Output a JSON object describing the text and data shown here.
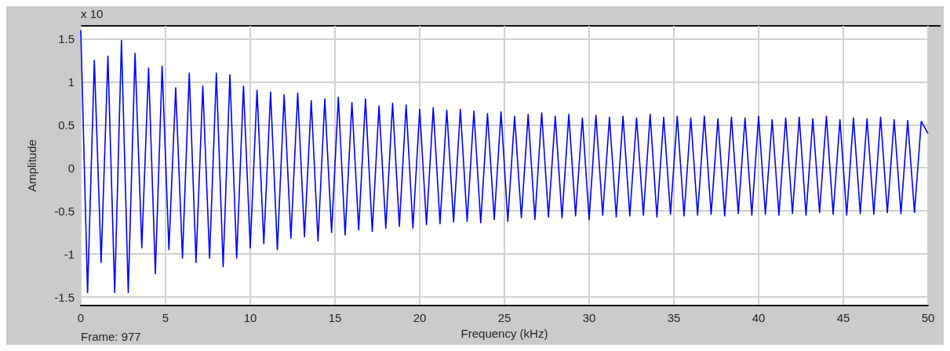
{
  "chart_data": {
    "type": "line",
    "xlabel": "Frequency (kHz)",
    "ylabel": "Amplitude",
    "annotations": [
      "x 10",
      "Frame: 977"
    ],
    "x": [
      0,
      0.4,
      0.8,
      1.2,
      1.6,
      2,
      2.4,
      2.8,
      3.2,
      3.6,
      4,
      4.4,
      4.8,
      5.2,
      5.6,
      6,
      6.4,
      6.8,
      7.2,
      7.6,
      8,
      8.4,
      8.8,
      9.2,
      9.6,
      10,
      10.4,
      10.8,
      11.2,
      11.6,
      12,
      12.4,
      12.8,
      13.2,
      13.6,
      14,
      14.4,
      14.8,
      15.2,
      15.6,
      16,
      16.4,
      16.8,
      17.2,
      17.6,
      18,
      18.4,
      18.8,
      19.2,
      19.6,
      20,
      20.4,
      20.8,
      21.2,
      21.6,
      22,
      22.4,
      22.8,
      23.2,
      23.6,
      24,
      24.4,
      24.8,
      25.2,
      25.6,
      26,
      26.4,
      26.8,
      27.2,
      27.6,
      28,
      28.4,
      28.8,
      29.2,
      29.6,
      30,
      30.4,
      30.8,
      31.2,
      31.6,
      32,
      32.4,
      32.8,
      33.2,
      33.6,
      34,
      34.4,
      34.8,
      35.2,
      35.6,
      36,
      36.4,
      36.8,
      37.2,
      37.6,
      38,
      38.4,
      38.8,
      39.2,
      39.6,
      40,
      40.4,
      40.8,
      41.2,
      41.6,
      42,
      42.4,
      42.8,
      43.2,
      43.6,
      44,
      44.4,
      44.8,
      45.2,
      45.6,
      46,
      46.4,
      46.8,
      47.2,
      47.6,
      48,
      48.4,
      48.8,
      49.2,
      49.6,
      50
    ],
    "series": [
      {
        "color": "#0000ff",
        "values": [
          1.6,
          -1.45,
          1.25,
          -1.1,
          1.3,
          -1.45,
          1.48,
          -1.45,
          1.33,
          -0.93,
          1.16,
          -1.23,
          1.18,
          -0.95,
          0.93,
          -1.05,
          1.1,
          -1.1,
          0.95,
          -1.05,
          1.1,
          -1.15,
          1.08,
          -1.05,
          0.95,
          -0.93,
          0.9,
          -0.88,
          0.88,
          -0.95,
          0.85,
          -0.82,
          0.87,
          -0.8,
          0.78,
          -0.85,
          0.8,
          -0.75,
          0.82,
          -0.78,
          0.76,
          -0.72,
          0.8,
          -0.74,
          0.72,
          -0.7,
          0.75,
          -0.68,
          0.73,
          -0.7,
          0.68,
          -0.66,
          0.7,
          -0.65,
          0.67,
          -0.63,
          0.68,
          -0.62,
          0.66,
          -0.64,
          0.63,
          -0.6,
          0.65,
          -0.62,
          0.6,
          -0.58,
          0.62,
          -0.6,
          0.64,
          -0.57,
          0.6,
          -0.58,
          0.62,
          -0.56,
          0.58,
          -0.6,
          0.61,
          -0.55,
          0.59,
          -0.57,
          0.6,
          -0.56,
          0.58,
          -0.55,
          0.62,
          -0.57,
          0.59,
          -0.54,
          0.6,
          -0.56,
          0.58,
          -0.55,
          0.6,
          -0.54,
          0.57,
          -0.56,
          0.59,
          -0.53,
          0.58,
          -0.55,
          0.6,
          -0.54,
          0.56,
          -0.55,
          0.58,
          -0.53,
          0.59,
          -0.55,
          0.57,
          -0.52,
          0.6,
          -0.54,
          0.56,
          -0.55,
          0.58,
          -0.53,
          0.57,
          -0.54,
          0.59,
          -0.52,
          0.56,
          -0.53,
          0.55,
          -0.52,
          0.54,
          0.4
        ]
      }
    ],
    "xlim": [
      0,
      50
    ],
    "xticks": [
      0,
      5,
      10,
      15,
      20,
      25,
      30,
      35,
      40,
      45,
      50
    ],
    "ylim": [
      -1.6,
      1.65
    ],
    "yticks": [
      -1.5,
      -1,
      -0.5,
      0,
      0.5,
      1,
      1.5
    ],
    "grid": true,
    "marker": "none",
    "line_style": "solid"
  }
}
